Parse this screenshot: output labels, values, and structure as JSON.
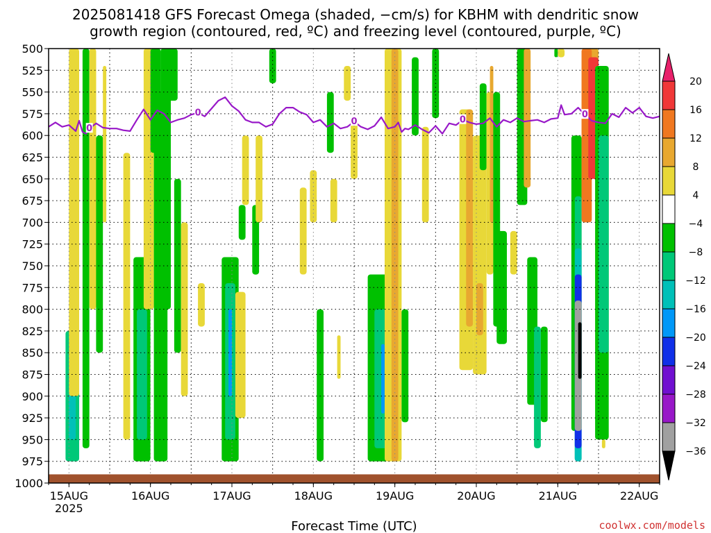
{
  "chart_data": {
    "type": "heatmap",
    "title_lines": [
      "2025081418 GFS Forecast Omega (shaded, −cm/s) for KBHM with dendritic snow",
      "growth region (contoured, red, ºC) and freezing level (contoured, purple, ºC)"
    ],
    "xlabel": "Forecast Time (UTC)",
    "credit": "coolwx.com/models",
    "y_ticks": [
      "500",
      "525",
      "550",
      "575",
      "600",
      "625",
      "650",
      "675",
      "700",
      "725",
      "750",
      "775",
      "800",
      "825",
      "850",
      "875",
      "900",
      "925",
      "950",
      "975",
      "1000"
    ],
    "y_values": [
      500,
      525,
      550,
      575,
      600,
      625,
      650,
      675,
      700,
      725,
      750,
      775,
      800,
      825,
      850,
      875,
      900,
      925,
      950,
      975,
      1000
    ],
    "x_ticks": [
      {
        "label": "15AUG",
        "sub": "2025",
        "hour": 6
      },
      {
        "label": "16AUG",
        "sub": "",
        "hour": 30
      },
      {
        "label": "17AUG",
        "sub": "",
        "hour": 54
      },
      {
        "label": "18AUG",
        "sub": "",
        "hour": 78
      },
      {
        "label": "19AUG",
        "sub": "",
        "hour": 102
      },
      {
        "label": "20AUG",
        "sub": "",
        "hour": 126
      },
      {
        "label": "21AUG",
        "sub": "",
        "hour": 150
      },
      {
        "label": "22AUG",
        "sub": "",
        "hour": 174
      }
    ],
    "xlim_hours": [
      0,
      180
    ],
    "ylim_hpa": [
      500,
      1000
    ],
    "colorbar": {
      "labels": [
        "20",
        "16",
        "12",
        "8",
        "4",
        "−4",
        "−8",
        "−12",
        "−16",
        "−20",
        "−24",
        "−28",
        "−32",
        "−36"
      ],
      "colors": [
        "#e8206a",
        "#f03838",
        "#f07820",
        "#e8a830",
        "#e8d838",
        "#ffffff",
        "#00c000",
        "#00c878",
        "#00c0b8",
        "#0098f8",
        "#1030e8",
        "#7010d0",
        "#9818c8",
        "#a0a0a0",
        "#000000"
      ]
    },
    "freezing_level": {
      "label": "0",
      "color": "#9818c8",
      "hours": [
        0,
        2,
        4,
        6,
        8,
        9,
        10,
        11,
        12,
        14,
        16,
        18,
        20,
        22,
        24,
        26,
        28,
        30,
        32,
        34,
        36,
        38,
        40,
        42,
        44,
        46,
        48,
        50,
        52,
        54,
        56,
        58,
        60,
        62,
        64,
        66,
        68,
        70,
        72,
        74,
        76,
        78,
        80,
        82,
        84,
        86,
        88,
        90,
        92,
        94,
        96,
        98,
        100,
        102,
        103,
        104,
        105,
        106,
        108,
        110,
        112,
        114,
        116,
        118,
        120,
        122,
        124,
        126,
        128,
        130,
        132,
        134,
        136,
        138,
        140,
        142,
        144,
        146,
        148,
        150,
        151,
        152,
        154,
        156,
        158,
        160,
        162,
        164,
        166,
        168,
        170,
        172,
        174,
        176,
        178,
        180
      ],
      "values": [
        590,
        585,
        590,
        588,
        595,
        583,
        596,
        598,
        592,
        586,
        591,
        592,
        592,
        594,
        595,
        582,
        570,
        582,
        571,
        575,
        585,
        582,
        580,
        576,
        574,
        578,
        569,
        560,
        556,
        566,
        572,
        582,
        585,
        585,
        590,
        587,
        575,
        568,
        568,
        573,
        576,
        585,
        582,
        590,
        586,
        592,
        590,
        584,
        590,
        593,
        589,
        579,
        592,
        590,
        585,
        596,
        592,
        593,
        588,
        593,
        597,
        589,
        598,
        586,
        588,
        582,
        585,
        587,
        586,
        580,
        590,
        582,
        585,
        580,
        584,
        583,
        582,
        585,
        581,
        580,
        565,
        576,
        575,
        568,
        576,
        583,
        585,
        586,
        575,
        579,
        568,
        574,
        568,
        578,
        580,
        578
      ]
    },
    "omega_cells": [
      {
        "t0": 5,
        "t1": 9,
        "p0": 825,
        "p1": 975,
        "v": -12
      },
      {
        "t0": 6,
        "t1": 8,
        "p0": 880,
        "p1": 950,
        "v": -16
      },
      {
        "t0": 6,
        "t1": 9,
        "p0": 500,
        "p1": 900,
        "v": 4
      },
      {
        "t0": 10,
        "t1": 12,
        "p0": 500,
        "p1": 960,
        "v": -8
      },
      {
        "t0": 12,
        "t1": 14,
        "p0": 500,
        "p1": 800,
        "v": 4
      },
      {
        "t0": 14,
        "t1": 16,
        "p0": 600,
        "p1": 850,
        "v": -8
      },
      {
        "t0": 16,
        "t1": 17,
        "p0": 520,
        "p1": 700,
        "v": 4
      },
      {
        "t0": 22,
        "t1": 24,
        "p0": 620,
        "p1": 950,
        "v": 4
      },
      {
        "t0": 25,
        "t1": 30,
        "p0": 740,
        "p1": 975,
        "v": -8
      },
      {
        "t0": 26,
        "t1": 29,
        "p0": 800,
        "p1": 950,
        "v": -12
      },
      {
        "t0": 28,
        "t1": 31,
        "p0": 500,
        "p1": 800,
        "v": 4
      },
      {
        "t0": 30,
        "t1": 33,
        "p0": 500,
        "p1": 620,
        "v": -8
      },
      {
        "t0": 31,
        "t1": 35,
        "p0": 550,
        "p1": 975,
        "v": -8
      },
      {
        "t0": 33,
        "t1": 36,
        "p0": 500,
        "p1": 800,
        "v": -8
      },
      {
        "t0": 35,
        "t1": 38,
        "p0": 500,
        "p1": 560,
        "v": -8
      },
      {
        "t0": 37,
        "t1": 39,
        "p0": 650,
        "p1": 850,
        "v": -8
      },
      {
        "t0": 39,
        "t1": 41,
        "p0": 700,
        "p1": 900,
        "v": 4
      },
      {
        "t0": 44,
        "t1": 46,
        "p0": 770,
        "p1": 820,
        "v": 4
      },
      {
        "t0": 51,
        "t1": 56,
        "p0": 740,
        "p1": 975,
        "v": -8
      },
      {
        "t0": 52,
        "t1": 55,
        "p0": 770,
        "p1": 950,
        "v": -12
      },
      {
        "t0": 53,
        "t1": 54,
        "p0": 800,
        "p1": 900,
        "v": -20
      },
      {
        "t0": 55,
        "t1": 58,
        "p0": 780,
        "p1": 925,
        "v": 4
      },
      {
        "t0": 56,
        "t1": 58,
        "p0": 680,
        "p1": 720,
        "v": -8
      },
      {
        "t0": 57,
        "t1": 59,
        "p0": 600,
        "p1": 680,
        "v": 4
      },
      {
        "t0": 60,
        "t1": 62,
        "p0": 680,
        "p1": 760,
        "v": -8
      },
      {
        "t0": 61,
        "t1": 63,
        "p0": 600,
        "p1": 700,
        "v": 4
      },
      {
        "t0": 65,
        "t1": 67,
        "p0": 500,
        "p1": 540,
        "v": -8
      },
      {
        "t0": 74,
        "t1": 76,
        "p0": 660,
        "p1": 760,
        "v": 4
      },
      {
        "t0": 77,
        "t1": 79,
        "p0": 640,
        "p1": 700,
        "v": 4
      },
      {
        "t0": 79,
        "t1": 81,
        "p0": 800,
        "p1": 975,
        "v": -8
      },
      {
        "t0": 82,
        "t1": 84,
        "p0": 550,
        "p1": 620,
        "v": -8
      },
      {
        "t0": 83,
        "t1": 85,
        "p0": 650,
        "p1": 700,
        "v": 4
      },
      {
        "t0": 85,
        "t1": 86,
        "p0": 830,
        "p1": 880,
        "v": 4
      },
      {
        "t0": 87,
        "t1": 89,
        "p0": 520,
        "p1": 560,
        "v": 4
      },
      {
        "t0": 89,
        "t1": 91,
        "p0": 580,
        "p1": 650,
        "v": 4
      },
      {
        "t0": 94,
        "t1": 100,
        "p0": 760,
        "p1": 975,
        "v": -8
      },
      {
        "t0": 96,
        "t1": 100,
        "p0": 800,
        "p1": 960,
        "v": -12
      },
      {
        "t0": 98,
        "t1": 99,
        "p0": 840,
        "p1": 920,
        "v": -20
      },
      {
        "t0": 99,
        "t1": 104,
        "p0": 500,
        "p1": 975,
        "v": 4
      },
      {
        "t0": 101,
        "t1": 103,
        "p0": 500,
        "p1": 975,
        "v": 8
      },
      {
        "t0": 104,
        "t1": 106,
        "p0": 800,
        "p1": 930,
        "v": -8
      },
      {
        "t0": 107,
        "t1": 109,
        "p0": 510,
        "p1": 600,
        "v": -8
      },
      {
        "t0": 110,
        "t1": 112,
        "p0": 590,
        "p1": 700,
        "v": 4
      },
      {
        "t0": 113,
        "t1": 115,
        "p0": 500,
        "p1": 580,
        "v": -8
      },
      {
        "t0": 121,
        "t1": 125,
        "p0": 570,
        "p1": 870,
        "v": 4
      },
      {
        "t0": 122,
        "t1": 124,
        "p0": 620,
        "p1": 860,
        "v": 4
      },
      {
        "t0": 123,
        "t1": 125,
        "p0": 570,
        "p1": 820,
        "v": 8
      },
      {
        "t0": 125,
        "t1": 129,
        "p0": 600,
        "p1": 875,
        "v": 4
      },
      {
        "t0": 126,
        "t1": 128,
        "p0": 770,
        "p1": 830,
        "v": 8
      },
      {
        "t0": 127,
        "t1": 129,
        "p0": 540,
        "p1": 640,
        "v": -8
      },
      {
        "t0": 129,
        "t1": 131,
        "p0": 550,
        "p1": 760,
        "v": 4
      },
      {
        "t0": 130,
        "t1": 131,
        "p0": 520,
        "p1": 700,
        "v": 8
      },
      {
        "t0": 131,
        "t1": 133,
        "p0": 550,
        "p1": 820,
        "v": -8
      },
      {
        "t0": 132,
        "t1": 135,
        "p0": 710,
        "p1": 840,
        "v": -8
      },
      {
        "t0": 136,
        "t1": 138,
        "p0": 710,
        "p1": 760,
        "v": 4
      },
      {
        "t0": 138,
        "t1": 141,
        "p0": 500,
        "p1": 680,
        "v": -8
      },
      {
        "t0": 140,
        "t1": 142,
        "p0": 500,
        "p1": 660,
        "v": 8
      },
      {
        "t0": 141,
        "t1": 144,
        "p0": 740,
        "p1": 910,
        "v": -8
      },
      {
        "t0": 143,
        "t1": 145,
        "p0": 820,
        "p1": 960,
        "v": -12
      },
      {
        "t0": 145,
        "t1": 147,
        "p0": 820,
        "p1": 930,
        "v": -8
      },
      {
        "t0": 149,
        "t1": 150,
        "p0": 500,
        "p1": 510,
        "v": -8
      },
      {
        "t0": 150,
        "t1": 152,
        "p0": 500,
        "p1": 510,
        "v": 4
      },
      {
        "t0": 154,
        "t1": 157,
        "p0": 600,
        "p1": 940,
        "v": -8
      },
      {
        "t0": 155,
        "t1": 157,
        "p0": 670,
        "p1": 975,
        "v": -12
      },
      {
        "t0": 155,
        "t1": 157,
        "p0": 730,
        "p1": 975,
        "v": -16
      },
      {
        "t0": 155,
        "t1": 157,
        "p0": 760,
        "p1": 960,
        "v": -24
      },
      {
        "t0": 155,
        "t1": 157,
        "p0": 790,
        "p1": 940,
        "v": -32
      },
      {
        "t0": 156,
        "t1": 157,
        "p0": 815,
        "p1": 880,
        "v": -36
      },
      {
        "t0": 157,
        "t1": 162,
        "p0": 500,
        "p1": 600,
        "v": 8
      },
      {
        "t0": 157,
        "t1": 160,
        "p0": 500,
        "p1": 700,
        "v": 12
      },
      {
        "t0": 159,
        "t1": 162,
        "p0": 510,
        "p1": 650,
        "v": 16
      },
      {
        "t0": 161,
        "t1": 165,
        "p0": 520,
        "p1": 950,
        "v": -8
      },
      {
        "t0": 162,
        "t1": 165,
        "p0": 600,
        "p1": 850,
        "v": -12
      },
      {
        "t0": 163,
        "t1": 164,
        "p0": 950,
        "p1": 960,
        "v": 4
      }
    ]
  }
}
